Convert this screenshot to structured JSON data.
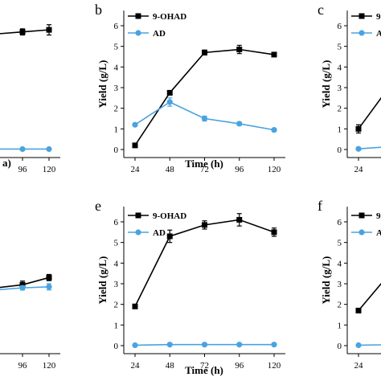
{
  "colors": {
    "s9ohad": "#000000",
    "sad": "#4aa3e0",
    "axis": "#000000"
  },
  "chart_data": [
    {
      "type": "line",
      "panel": "",
      "xlabel": "a)",
      "ylabel": "",
      "xlim": [
        24,
        120
      ],
      "ylim": [
        0,
        6.5
      ],
      "categories": [
        "96",
        "120"
      ],
      "yticks": [],
      "series": [
        {
          "name": "",
          "x": [
            72,
            96,
            120
          ],
          "y": [
            5.6,
            5.7,
            5.8
          ],
          "err": [
            0,
            0.15,
            0.25
          ],
          "marker": "square"
        },
        {
          "name": "",
          "x": [
            72,
            96,
            120
          ],
          "y": [
            0.02,
            0.02,
            0.02
          ],
          "err": [
            0,
            0,
            0
          ],
          "marker": "circle"
        }
      ]
    },
    {
      "type": "line",
      "panel": "b",
      "xlabel": "Time (h)",
      "ylabel": "Yield (g/L)",
      "xlim": [
        24,
        120
      ],
      "ylim": [
        0,
        6.5
      ],
      "categories": [
        "24",
        "48",
        "72",
        "96",
        "120"
      ],
      "yticks": [
        "0",
        "1",
        "2",
        "3",
        "4",
        "5",
        "6"
      ],
      "series": [
        {
          "name": "9-OHAD",
          "x": [
            24,
            48,
            72,
            96,
            120
          ],
          "y": [
            0.2,
            2.75,
            4.7,
            4.85,
            4.6
          ],
          "err": [
            0,
            0.08,
            0.12,
            0.2,
            0.07
          ],
          "marker": "square"
        },
        {
          "name": "AD",
          "x": [
            24,
            48,
            72,
            96,
            120
          ],
          "y": [
            1.2,
            2.3,
            1.5,
            1.25,
            0.95
          ],
          "err": [
            0.05,
            0.2,
            0.12,
            0.08,
            0.08
          ],
          "marker": "circle"
        }
      ]
    },
    {
      "type": "line",
      "panel": "c",
      "xlabel": "",
      "ylabel": "Yield (g/L)",
      "xlim": [
        24,
        120
      ],
      "ylim": [
        0,
        6.5
      ],
      "categories": [
        "24"
      ],
      "yticks": [
        "0",
        "1",
        "2",
        "3",
        "4",
        "5",
        "6"
      ],
      "series": [
        {
          "name": "9-",
          "x": [
            24,
            48
          ],
          "y": [
            1.0,
            3.3
          ],
          "err": [
            0.2,
            0.2
          ],
          "marker": "square"
        },
        {
          "name": "A",
          "x": [
            24,
            48
          ],
          "y": [
            0.03,
            0.15
          ],
          "err": [
            0,
            0
          ],
          "marker": "circle"
        }
      ]
    },
    {
      "type": "line",
      "panel": "",
      "xlabel": "",
      "ylabel": "",
      "xlim": [
        24,
        120
      ],
      "ylim": [
        0,
        6.5
      ],
      "categories": [
        "96",
        "120"
      ],
      "yticks": [],
      "series": [
        {
          "name": "",
          "x": [
            72,
            96,
            120
          ],
          "y": [
            2.8,
            2.95,
            3.3
          ],
          "err": [
            0,
            0.18,
            0.15
          ],
          "marker": "square"
        },
        {
          "name": "",
          "x": [
            72,
            96,
            120
          ],
          "y": [
            2.7,
            2.8,
            2.85
          ],
          "err": [
            0,
            0.1,
            0.15
          ],
          "marker": "circle"
        }
      ]
    },
    {
      "type": "line",
      "panel": "e",
      "xlabel": "Time (h)",
      "ylabel": "Yield (g/L)",
      "xlim": [
        24,
        120
      ],
      "ylim": [
        0,
        6.5
      ],
      "categories": [
        "24",
        "48",
        "72",
        "96",
        "120"
      ],
      "yticks": [
        "0",
        "1",
        "2",
        "3",
        "4",
        "5",
        "6"
      ],
      "series": [
        {
          "name": "9-OHAD",
          "x": [
            24,
            48,
            72,
            96,
            120
          ],
          "y": [
            1.9,
            5.3,
            5.85,
            6.1,
            5.5
          ],
          "err": [
            0,
            0.3,
            0.2,
            0.3,
            0.2
          ],
          "marker": "square"
        },
        {
          "name": "AD",
          "x": [
            24,
            48,
            72,
            96,
            120
          ],
          "y": [
            0.02,
            0.05,
            0.05,
            0.05,
            0.05
          ],
          "err": [
            0,
            0,
            0,
            0,
            0
          ],
          "marker": "circle"
        }
      ]
    },
    {
      "type": "line",
      "panel": "f",
      "xlabel": "",
      "ylabel": "Yield (g/L)",
      "xlim": [
        24,
        120
      ],
      "ylim": [
        0,
        6.5
      ],
      "categories": [
        "24"
      ],
      "yticks": [
        "0",
        "1",
        "2",
        "3",
        "4",
        "5",
        "6"
      ],
      "series": [
        {
          "name": "9-",
          "x": [
            24,
            48
          ],
          "y": [
            1.7,
            3.7
          ],
          "err": [
            0,
            0.2
          ],
          "marker": "square"
        },
        {
          "name": "A",
          "x": [
            24,
            48
          ],
          "y": [
            0.02,
            0.05
          ],
          "err": [
            0,
            0
          ],
          "marker": "circle"
        }
      ]
    }
  ]
}
